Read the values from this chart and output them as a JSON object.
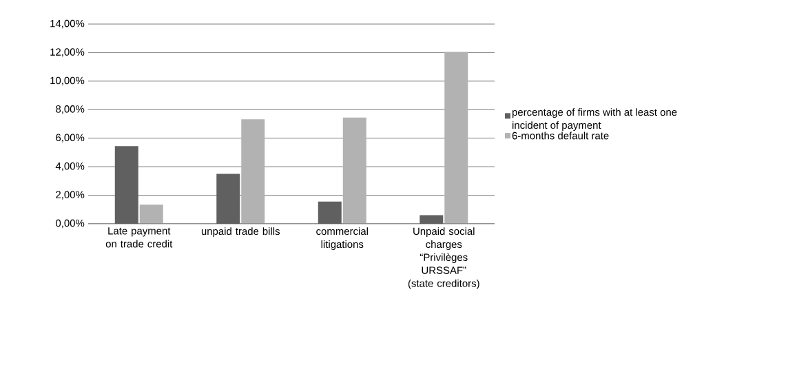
{
  "chart_data": {
    "type": "bar",
    "categories": [
      "Late payment on trade credit",
      "unpaid trade bills",
      "commercial litigations",
      "Unpaid social charges “Privilèges URSSAF” (state creditors)"
    ],
    "series": [
      {
        "name": "percentage of firms with at least one incident of payment",
        "color": "#606060",
        "values": [
          5.44,
          3.5,
          1.56,
          0.6
        ]
      },
      {
        "name": "6-months default rate",
        "color": "#b2b2b2",
        "values": [
          1.34,
          7.33,
          7.45,
          12.06
        ]
      }
    ],
    "ylim": [
      0,
      14
    ],
    "yticks": [
      {
        "value": 0,
        "label": "0,00%"
      },
      {
        "value": 2,
        "label": "2,00%"
      },
      {
        "value": 4,
        "label": "4,00%"
      },
      {
        "value": 6,
        "label": "6,00%"
      },
      {
        "value": 8,
        "label": "8,00%"
      },
      {
        "value": 10,
        "label": "10,00%"
      },
      {
        "value": 12,
        "label": "12,00%"
      },
      {
        "value": 14,
        "label": "14,00%"
      }
    ],
    "grid": "y",
    "legend": "right"
  }
}
